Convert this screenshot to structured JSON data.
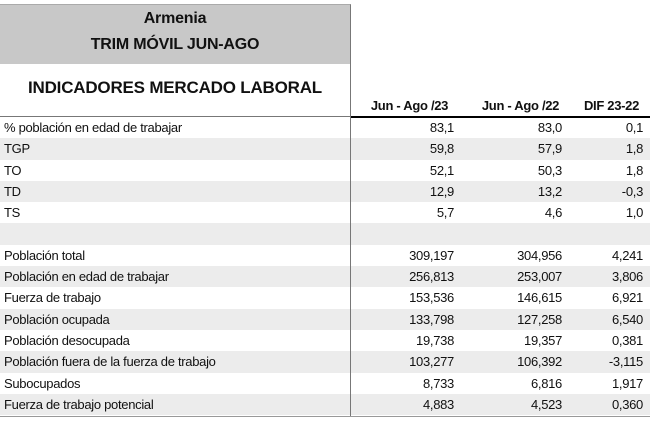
{
  "header": {
    "line1": "Armenia",
    "line2": "TRIM MÓVIL JUN-AGO",
    "subtitle": "INDICADORES MERCADO LABORAL"
  },
  "columns": [
    "Jun - Ago /23",
    "Jun - Ago /22",
    "DIF 23-22"
  ],
  "rows": [
    {
      "label": "% población en edad de trabajar",
      "c1": "83,1",
      "c2": "83,0",
      "c3": "0,1"
    },
    {
      "label": "TGP",
      "c1": "59,8",
      "c2": "57,9",
      "c3": "1,8"
    },
    {
      "label": "TO",
      "c1": "52,1",
      "c2": "50,3",
      "c3": "1,8"
    },
    {
      "label": "TD",
      "c1": "12,9",
      "c2": "13,2",
      "c3": "-0,3"
    },
    {
      "label": "TS",
      "c1": "5,7",
      "c2": "4,6",
      "c3": "1,0"
    },
    {
      "label": "",
      "c1": "",
      "c2": "",
      "c3": ""
    },
    {
      "label": "Población total",
      "c1": "309,197",
      "c2": "304,956",
      "c3": "4,241"
    },
    {
      "label": "Población en edad de trabajar",
      "c1": "256,813",
      "c2": "253,007",
      "c3": "3,806"
    },
    {
      "label": "Fuerza de trabajo",
      "c1": "153,536",
      "c2": "146,615",
      "c3": "6,921"
    },
    {
      "label": "Población ocupada",
      "c1": "133,798",
      "c2": "127,258",
      "c3": "6,540"
    },
    {
      "label": "Población desocupada",
      "c1": "19,738",
      "c2": "19,357",
      "c3": "0,381"
    },
    {
      "label": "Población fuera de la fuerza de trabajo",
      "c1": "103,277",
      "c2": "106,392",
      "c3": "-3,115"
    },
    {
      "label": "Subocupados",
      "c1": "8,733",
      "c2": "6,816",
      "c3": "1,917"
    },
    {
      "label": "Fuerza de trabajo potencial",
      "c1": "4,883",
      "c2": "4,523",
      "c3": "0,360"
    }
  ]
}
